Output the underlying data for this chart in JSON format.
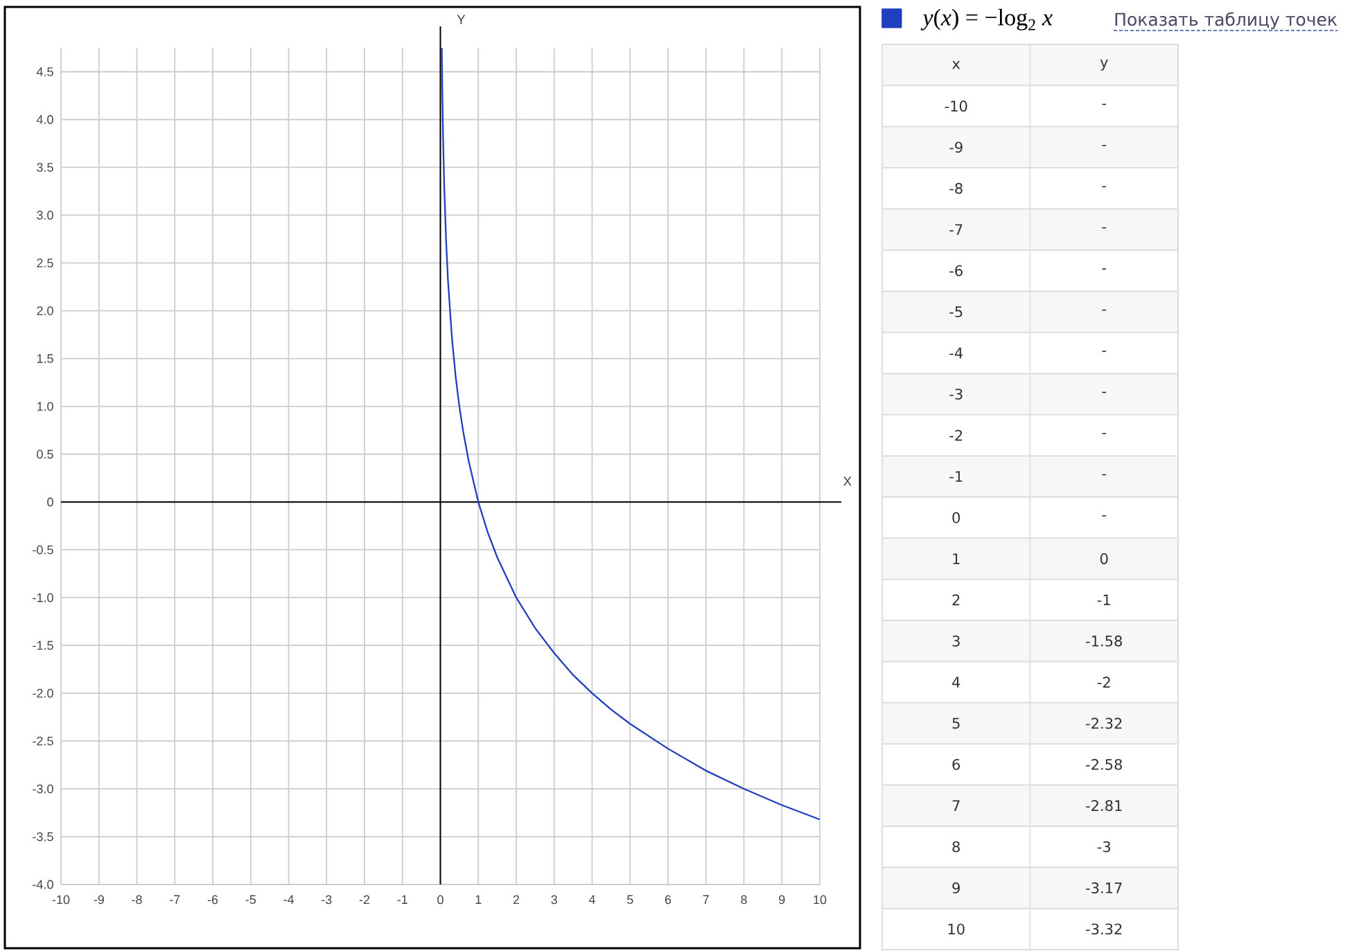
{
  "chart_data": [
    {
      "type": "line",
      "xlabel": "X",
      "ylabel": "Y",
      "xlim": [
        -10,
        10
      ],
      "ylim": [
        -4,
        4.75
      ],
      "xticks": [
        -10,
        -9,
        -8,
        -7,
        -6,
        -5,
        -4,
        -3,
        -2,
        -1,
        0,
        1,
        2,
        3,
        4,
        5,
        6,
        7,
        8,
        9,
        10
      ],
      "yticks": [
        {
          "value": -4,
          "label": "-4.0"
        },
        -3.5,
        {
          "value": -3,
          "label": "-3.0"
        },
        -2.5,
        {
          "value": -2,
          "label": "-2.0"
        },
        -1.5,
        {
          "value": -1,
          "label": "-1.0"
        },
        -0.5,
        0,
        0.5,
        {
          "value": 1,
          "label": "1.0"
        },
        1.5,
        {
          "value": 2,
          "label": "2.0"
        },
        2.5,
        {
          "value": 3,
          "label": "3.0"
        },
        3.5,
        {
          "value": 4,
          "label": "4.0"
        },
        4.5
      ],
      "grid": true,
      "legend": "top right",
      "annotations": [
        "Показать таблицу точек"
      ],
      "series": [
        {
          "name": "*y*(*x*) = −log$_{2}$ *x*",
          "color": "#1f3fbf",
          "x": [
            0.037,
            0.05,
            0.07,
            0.1,
            0.15,
            0.2,
            0.3,
            0.4,
            0.5,
            0.6,
            0.75,
            1,
            1.25,
            1.5,
            2,
            2.5,
            3,
            3.5,
            4,
            4.5,
            5,
            6,
            7,
            8,
            9,
            10
          ],
          "values": [
            4.75,
            4.32,
            3.84,
            3.32,
            2.74,
            2.32,
            1.74,
            1.32,
            1,
            0.74,
            0.42,
            0,
            -0.32,
            -0.58,
            -1,
            -1.32,
            -1.58,
            -1.81,
            -2,
            -2.17,
            -2.32,
            -2.58,
            -2.81,
            -3,
            -3.17,
            -3.32
          ]
        }
      ]
    },
    {
      "type": "heatmap",
      "ylabel": "x",
      "categories": [
        "y"
      ],
      "y_categories": [
        "-10",
        "-9",
        "-8",
        "-7",
        "-6",
        "-5",
        "-4",
        "-3",
        "-2",
        "-1",
        "0",
        "1",
        "2",
        "3",
        "4",
        "5",
        "6",
        "7",
        "8",
        "9",
        "10"
      ],
      "cells": [
        [
          null
        ],
        [
          null
        ],
        [
          null
        ],
        [
          null
        ],
        [
          null
        ],
        [
          null
        ],
        [
          null
        ],
        [
          null
        ],
        [
          null
        ],
        [
          null
        ],
        [
          null
        ],
        [
          0
        ],
        [
          -1
        ],
        [
          -1.58
        ],
        [
          -2
        ],
        [
          -2.32
        ],
        [
          -2.58
        ],
        [
          -2.81
        ],
        [
          -3
        ],
        [
          -3.17
        ],
        [
          -3.32
        ]
      ],
      "cell_labels": [
        [
          "-"
        ],
        [
          "-"
        ],
        [
          "-"
        ],
        [
          "-"
        ],
        [
          "-"
        ],
        [
          "-"
        ],
        [
          "-"
        ],
        [
          "-"
        ],
        [
          "-"
        ],
        [
          "-"
        ],
        [
          "-"
        ],
        [
          "0"
        ],
        [
          "-1"
        ],
        [
          "-1.58"
        ],
        [
          "-2"
        ],
        [
          "-2.32"
        ],
        [
          "-2.58"
        ],
        [
          "-2.81"
        ],
        [
          "-3"
        ],
        [
          "-3.17"
        ],
        [
          "-3.32"
        ]
      ]
    }
  ]
}
